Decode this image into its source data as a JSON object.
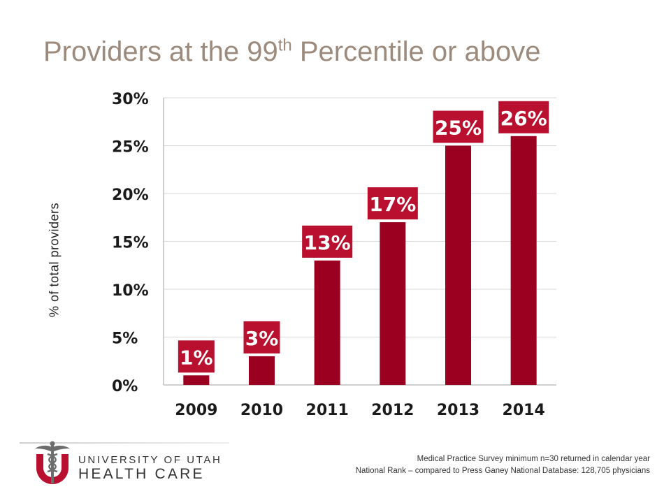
{
  "header": {
    "title_prefix": "Providers at the 99",
    "title_sup": "th",
    "title_suffix": " Percentile or above"
  },
  "chart_data": {
    "type": "bar",
    "categories": [
      "2009",
      "2010",
      "2011",
      "2012",
      "2013",
      "2014"
    ],
    "values": [
      1,
      3,
      13,
      17,
      25,
      26
    ],
    "data_labels": [
      "1%",
      "3%",
      "13%",
      "17%",
      "25%",
      "26%"
    ],
    "ylabel": "% of  total providers",
    "ylim": [
      0,
      30
    ],
    "yticks": [
      0,
      5,
      10,
      15,
      20,
      25,
      30
    ],
    "ytick_labels": [
      "0%",
      "5%",
      "10%",
      "15%",
      "20%",
      "25%",
      "30%"
    ],
    "grid": true,
    "colors": {
      "bar": "#9b0020",
      "label_box": "#b8102e",
      "label_text": "#ffffff",
      "grid": "#d9d9d9"
    }
  },
  "footer": {
    "logo_line1": "UNIVERSITY OF UTAH",
    "logo_line2": "HEALTH CARE",
    "logo_icon": "caduceus-u-icon",
    "note_line1": "Medical Practice Survey minimum n=30 returned in calendar year",
    "note_line2": "National Rank – compared to Press Ganey National Database: 128,705  physicians"
  }
}
